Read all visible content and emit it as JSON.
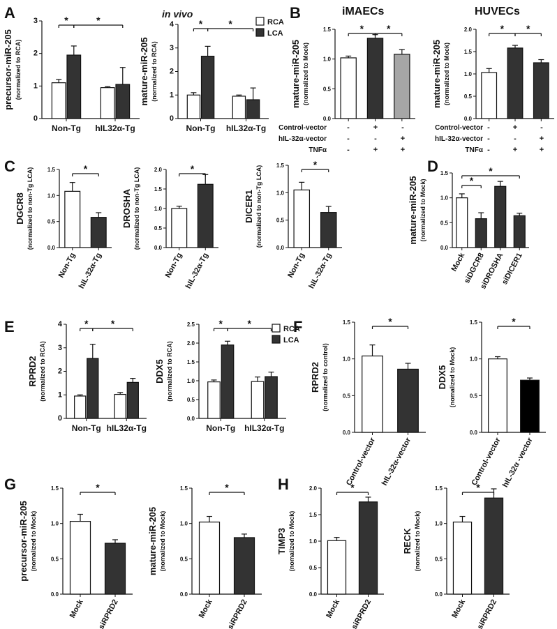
{
  "panel_labels": [
    "A",
    "B",
    "C",
    "D",
    "E",
    "F",
    "G",
    "H"
  ],
  "headers": {
    "in_vivo": "in vivo",
    "imaecs": "iMAECs",
    "huvecs": "HUVECs"
  },
  "legend": {
    "rca": "RCA",
    "lca": "LCA"
  },
  "colors": {
    "white": "#ffffff",
    "dark": "#333333",
    "black": "#000000",
    "grey": "#a6a6a6"
  },
  "condition_table": {
    "rows": [
      {
        "label": "Control-vector",
        "values": [
          "-",
          "+",
          "-"
        ]
      },
      {
        "label": "hIL-32α-vector",
        "values": [
          "-",
          "-",
          "+"
        ]
      },
      {
        "label": "TNFα",
        "values": [
          "-",
          "+",
          "+"
        ]
      }
    ]
  },
  "chart_data": [
    {
      "id": "A1",
      "type": "bar",
      "ylabel": "precursor-miR-205",
      "ylabel2": "(normalized to RCA)",
      "ylim": [
        0,
        3
      ],
      "yticks": [
        "0",
        "1",
        "2",
        "3"
      ],
      "groups": [
        "Non-Tg",
        "hIL32α-Tg"
      ],
      "series": [
        {
          "name": "RCA",
          "values": [
            1.1,
            0.95
          ],
          "err": [
            0.1,
            0.03
          ]
        },
        {
          "name": "LCA",
          "values": [
            1.95,
            1.05
          ],
          "err": [
            0.28,
            0.52
          ]
        }
      ],
      "sig": [
        "*",
        "*"
      ]
    },
    {
      "id": "A2",
      "type": "bar",
      "ylabel": "mature-miR-205",
      "ylabel2": "(normalized to RCA)",
      "ylim": [
        0,
        4
      ],
      "yticks": [
        "0",
        "1",
        "2",
        "3",
        "4"
      ],
      "groups": [
        "Non-Tg",
        "hIL32α-Tg"
      ],
      "series": [
        {
          "name": "RCA",
          "values": [
            1.0,
            0.95
          ],
          "err": [
            0.1,
            0.05
          ]
        },
        {
          "name": "LCA",
          "values": [
            2.65,
            0.8
          ],
          "err": [
            0.42,
            0.5
          ]
        }
      ],
      "sig": [
        "*",
        "*"
      ]
    },
    {
      "id": "B1",
      "type": "bar",
      "ylabel": "mature-miR-205",
      "ylabel2": "(normalized to Mock)",
      "ylim": [
        0,
        1.5
      ],
      "yticks": [
        "0.0",
        "0.5",
        "1.0",
        "1.5"
      ],
      "categories": [
        "",
        "",
        ""
      ],
      "values": [
        1.02,
        1.35,
        1.08
      ],
      "err": [
        0.03,
        0.06,
        0.08
      ],
      "sig": [
        "*",
        "*"
      ]
    },
    {
      "id": "B2",
      "type": "bar",
      "ylabel": "mature-miR-205",
      "ylabel2": "(normalized to Mock)",
      "ylim": [
        0,
        2.0
      ],
      "yticks": [
        "0.0",
        "0.5",
        "1.0",
        "1.5",
        "2.0"
      ],
      "categories": [
        "",
        "",
        ""
      ],
      "values": [
        1.03,
        1.58,
        1.25
      ],
      "err": [
        0.09,
        0.06,
        0.07
      ],
      "sig": [
        "*",
        "*"
      ]
    },
    {
      "id": "C1",
      "type": "bar",
      "ylabel": "DGCR8",
      "ylabel2": "(normalized to non-Tg LCA)",
      "ylim": [
        0,
        1.5
      ],
      "yticks": [
        "0.0",
        "0.5",
        "1.0",
        "1.5"
      ],
      "categories": [
        "Non-Tg",
        "hIL-32α-Tg"
      ],
      "values": [
        1.08,
        0.58
      ],
      "err": [
        0.17,
        0.09
      ],
      "sig": [
        "*"
      ]
    },
    {
      "id": "C2",
      "type": "bar",
      "ylabel": "DROSHA",
      "ylabel2": "(normalized to non-Tg LCA)",
      "ylim": [
        0,
        2.0
      ],
      "yticks": [
        "0.0",
        "0.5",
        "1.0",
        "1.5",
        "2.0"
      ],
      "categories": [
        "Non-Tg",
        "hIL-32α-Tg"
      ],
      "values": [
        1.0,
        1.62
      ],
      "err": [
        0.06,
        0.25
      ],
      "sig": [
        "*"
      ]
    },
    {
      "id": "C3",
      "type": "bar",
      "ylabel": "DICER1",
      "ylabel2": "(normalized to non-Tg LCA)",
      "ylim": [
        0,
        1.5
      ],
      "yticks": [
        "0.0",
        "0.5",
        "1.0",
        "1.5"
      ],
      "categories": [
        "Non-Tg",
        "hIL-32α-Tg"
      ],
      "values": [
        1.05,
        0.64
      ],
      "err": [
        0.14,
        0.11
      ],
      "sig": [
        "*"
      ]
    },
    {
      "id": "D",
      "type": "bar",
      "ylabel": "mature-miR-205",
      "ylabel2": "(normalized to Mock)",
      "ylim": [
        0,
        1.5
      ],
      "yticks": [
        "0.0",
        "0.5",
        "1.0",
        "1.5"
      ],
      "categories": [
        "Mock",
        "siDGCR8",
        "siDROSHA",
        "siDICER1"
      ],
      "values": [
        1.0,
        0.58,
        1.23,
        0.64
      ],
      "err": [
        0.08,
        0.12,
        0.1,
        0.05
      ],
      "sig": [
        "*",
        "*"
      ]
    },
    {
      "id": "E1",
      "type": "bar",
      "ylabel": "RPRD2",
      "ylabel2": "(normalized to RCA)",
      "ylim": [
        0,
        4
      ],
      "yticks": [
        "0",
        "1",
        "2",
        "3",
        "4"
      ],
      "groups": [
        "Non-Tg",
        "hIL32α-Tg"
      ],
      "series": [
        {
          "name": "RCA",
          "values": [
            0.95,
            1.02
          ],
          "err": [
            0.05,
            0.08
          ]
        },
        {
          "name": "LCA",
          "values": [
            2.55,
            1.53
          ],
          "err": [
            0.6,
            0.17
          ]
        }
      ],
      "sig": [
        "*",
        "*"
      ]
    },
    {
      "id": "E2",
      "type": "bar",
      "ylabel": "DDX5",
      "ylabel2": "(normalized to RCA)",
      "ylim": [
        0,
        2.5
      ],
      "yticks": [
        "0.0",
        "0.5",
        "1.0",
        "1.5",
        "2.0",
        "2.5"
      ],
      "groups": [
        "Non-Tg",
        "hIL32α-Tg"
      ],
      "series": [
        {
          "name": "RCA",
          "values": [
            0.97,
            0.98
          ],
          "err": [
            0.05,
            0.12
          ]
        },
        {
          "name": "LCA",
          "values": [
            1.95,
            1.11
          ],
          "err": [
            0.1,
            0.12
          ]
        }
      ],
      "sig": [
        "*",
        "*"
      ]
    },
    {
      "id": "F1",
      "type": "bar",
      "ylabel": "RPRD2",
      "ylabel2": "(normalized to control)",
      "ylim": [
        0,
        1.5
      ],
      "yticks": [
        "0.0",
        "0.5",
        "1.0",
        "1.5"
      ],
      "categories": [
        "Control-vector",
        "hIL-32α-vector"
      ],
      "values": [
        1.04,
        0.86
      ],
      "err": [
        0.15,
        0.08
      ],
      "sig": [
        "*"
      ]
    },
    {
      "id": "F2",
      "type": "bar",
      "ylabel": "DDX5",
      "ylabel2": "(nomalized to Mock)",
      "ylim": [
        0,
        1.5
      ],
      "yticks": [
        "0.0",
        "0.5",
        "1.0",
        "1.5"
      ],
      "categories": [
        "Control-vector",
        "hIL-32α -vector"
      ],
      "values": [
        1.0,
        0.71
      ],
      "err": [
        0.03,
        0.03
      ],
      "sig": [
        "*"
      ]
    },
    {
      "id": "G1",
      "type": "bar",
      "ylabel": "precursor-miR-205",
      "ylabel2": "(nomalized to Mock)",
      "ylim": [
        0,
        1.5
      ],
      "yticks": [
        "0.0",
        "0.5",
        "1.0",
        "1.5"
      ],
      "categories": [
        "Mock",
        "siRPRD2"
      ],
      "values": [
        1.03,
        0.72
      ],
      "err": [
        0.1,
        0.05
      ],
      "sig": [
        "*"
      ]
    },
    {
      "id": "G2",
      "type": "bar",
      "ylabel": "mature-miR-205",
      "ylabel2": "(nomalized to Mock)",
      "ylim": [
        0,
        1.5
      ],
      "yticks": [
        "0.0",
        "0.5",
        "1.0",
        "1.5"
      ],
      "categories": [
        "Mock",
        "siRPRD2"
      ],
      "values": [
        1.02,
        0.8
      ],
      "err": [
        0.08,
        0.05
      ],
      "sig": [
        "*"
      ]
    },
    {
      "id": "H1",
      "type": "bar",
      "ylabel": "TIMP3",
      "ylabel2": "(nomalized to Mock)",
      "ylim": [
        0,
        2.0
      ],
      "yticks": [
        "0.0",
        "0.5",
        "1.0",
        "1.5",
        "2.0"
      ],
      "categories": [
        "Mock",
        "siRPRD2"
      ],
      "values": [
        1.01,
        1.74
      ],
      "err": [
        0.06,
        0.09
      ],
      "sig": [
        "*"
      ]
    },
    {
      "id": "H2",
      "type": "bar",
      "ylabel": "RECK",
      "ylabel2": "(nomalized to Mock)",
      "ylim": [
        0,
        1.5
      ],
      "yticks": [
        "0.0",
        "0.5",
        "1.0",
        "1.5"
      ],
      "categories": [
        "Mock",
        "siRPRD2"
      ],
      "values": [
        1.02,
        1.36
      ],
      "err": [
        0.08,
        0.13
      ],
      "sig": [
        "*"
      ]
    }
  ]
}
